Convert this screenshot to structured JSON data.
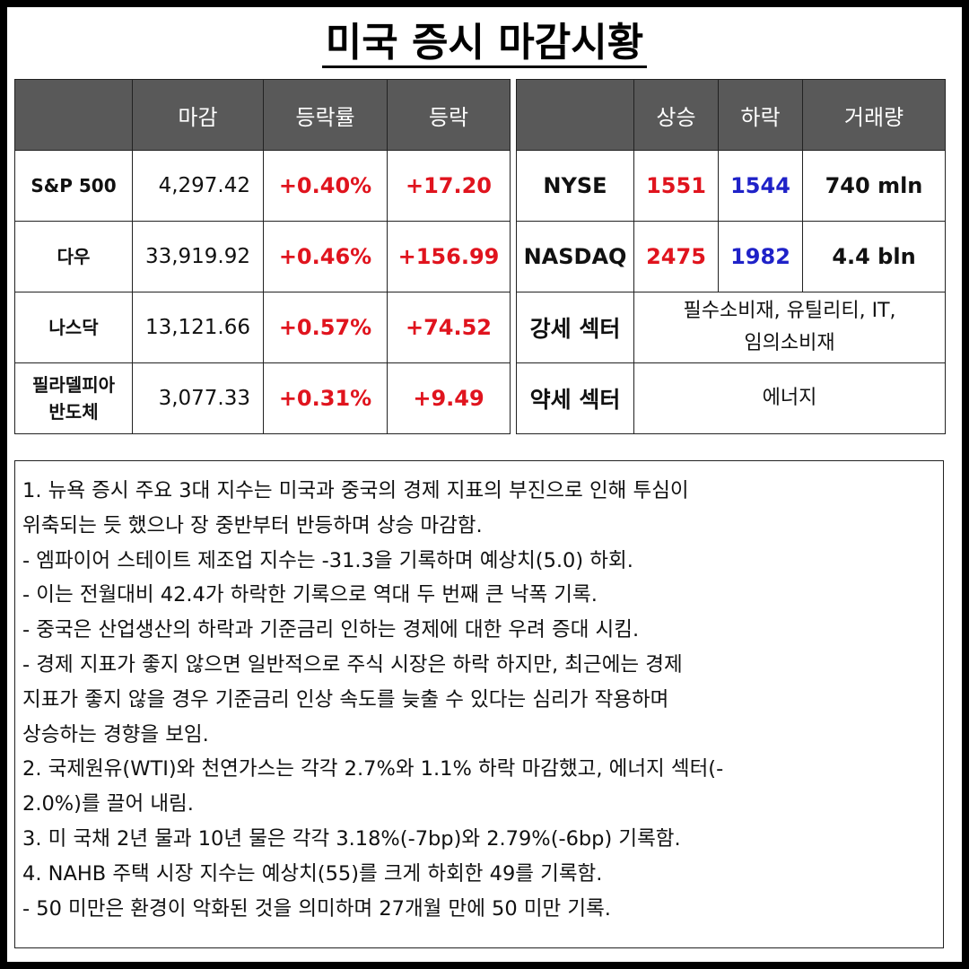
{
  "title": "미국 증시 마감시황",
  "index_table": {
    "headers": [
      "",
      "마감",
      "등락률",
      "등락"
    ],
    "rows": [
      {
        "name": "S&P 500",
        "close": "4,297.42",
        "pct": "+0.40%",
        "chg": "+17.20"
      },
      {
        "name": "다우",
        "close": "33,919.92",
        "pct": "+0.46%",
        "chg": "+156.99"
      },
      {
        "name": "나스닥",
        "close": "13,121.66",
        "pct": "+0.57%",
        "chg": "+74.52"
      },
      {
        "name_line1": "필라델피아",
        "name_line2": "반도체",
        "close": "3,077.33",
        "pct": "+0.31%",
        "chg": "+9.49"
      }
    ]
  },
  "market_table": {
    "headers": [
      "",
      "상승",
      "하락",
      "거래량"
    ],
    "rows": [
      {
        "name": "NYSE",
        "up": "1551",
        "down": "1544",
        "volume": "740 mln"
      },
      {
        "name": "NASDAQ",
        "up": "2475",
        "down": "1982",
        "volume": "4.4 bln"
      }
    ],
    "strong_sector": {
      "label": "강세 섹터",
      "line1": "필수소비재, 유틸리티, IT,",
      "line2": "임의소비재"
    },
    "weak_sector": {
      "label": "약세 섹터",
      "value": "에너지"
    }
  },
  "notes": [
    "1. 뉴욕 증시 주요 3대 지수는 미국과 중국의 경제 지표의 부진으로 인해 투심이",
    "위축되는 듯 했으나 장 중반부터 반등하며 상승 마감함.",
    "- 엠파이어 스테이트 제조업 지수는 -31.3을 기록하며 예상치(5.0) 하회.",
    "- 이는 전월대비 42.4가 하락한 기록으로 역대 두 번째 큰 낙폭 기록.",
    "- 중국은 산업생산의 하락과 기준금리 인하는 경제에 대한 우려 증대 시킴.",
    "- 경제 지표가 좋지 않으면 일반적으로 주식 시장은 하락 하지만, 최근에는 경제",
    "지표가 좋지 않을 경우 기준금리 인상 속도를 늦출 수 있다는 심리가 작용하며",
    "상승하는 경향을 보임.",
    "2. 국제원유(WTI)와 천연가스는 각각 2.7%와 1.1% 하락 마감했고, 에너지 섹터(-",
    "2.0%)를 끌어 내림.",
    "3. 미 국채 2년 물과 10년 물은 각각 3.18%(-7bp)와 2.79%(-6bp) 기록함.",
    "4. NAHB 주택 시장 지수는 예상치(55)를 크게 하회한 49를 기록함.",
    "- 50 미만은 환경이 악화된 것을 의미하며 27개월 만에 50 미만 기록."
  ],
  "colors": {
    "header_bg": "#595959",
    "up": "#e0141e",
    "down": "#1f22c8"
  }
}
